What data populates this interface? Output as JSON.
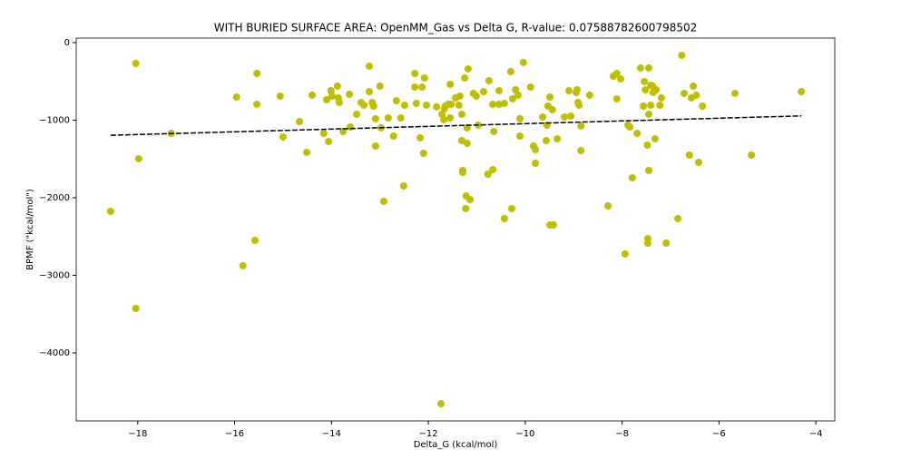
{
  "chart_data": {
    "type": "scatter",
    "title": "WITH BURIED SURFACE AREA: OpenMM_Gas vs Delta G, R-value: 0.07588782600798502",
    "x_label": "Delta_G (kcal/mol)",
    "y_label": "BPMF (\"kcal/mol\")",
    "color": "#bfbf00",
    "x": [
      -18.56,
      -18.04,
      -18.04,
      -17.98,
      -17.31,
      -15.96,
      -15.58,
      -15.54,
      -15.54,
      -15.83,
      -15.06,
      -15.0,
      -14.66,
      -14.51,
      -14.4,
      -14.16,
      -14.1,
      -14.06,
      -14.01,
      -13.99,
      -13.88,
      -13.86,
      -13.84,
      -13.76,
      -13.63,
      -13.61,
      -13.48,
      -13.39,
      -13.33,
      -13.22,
      -13.22,
      -13.16,
      -13.13,
      -13.09,
      -13.09,
      -13.0,
      -12.98,
      -12.92,
      -12.83,
      -12.72,
      -12.66,
      -12.57,
      -12.49,
      -12.51,
      -12.28,
      -12.28,
      -12.25,
      -12.17,
      -12.13,
      -12.1,
      -12.08,
      -12.04,
      -11.83,
      -11.74,
      -11.72,
      -11.68,
      -11.67,
      -11.65,
      -11.59,
      -11.55,
      -11.53,
      -11.55,
      -11.44,
      -11.37,
      -11.35,
      -11.31,
      -11.31,
      -11.29,
      -11.29,
      -11.25,
      -11.23,
      -11.22,
      -11.2,
      -11.2,
      -11.18,
      -11.14,
      -11.07,
      -11.01,
      -10.97,
      -10.86,
      -10.75,
      -10.77,
      -10.67,
      -10.67,
      -10.65,
      -10.54,
      -10.54,
      -10.43,
      -10.43,
      -10.3,
      -10.28,
      -10.26,
      -10.2,
      -10.15,
      -10.11,
      -10.11,
      -10.04,
      -9.89,
      -9.83,
      -9.79,
      -9.79,
      -9.64,
      -9.57,
      -9.55,
      -9.53,
      -9.49,
      -9.49,
      -9.42,
      -9.44,
      -9.34,
      -9.19,
      -9.1,
      -9.06,
      -8.95,
      -8.93,
      -8.91,
      -8.89,
      -8.85,
      -8.85,
      -8.67,
      -8.29,
      -8.18,
      -8.11,
      -8.11,
      -8.03,
      -7.94,
      -7.88,
      -7.84,
      -7.79,
      -7.69,
      -7.62,
      -7.56,
      -7.54,
      -7.52,
      -7.48,
      -7.47,
      -7.47,
      -7.45,
      -7.45,
      -7.45,
      -7.41,
      -7.41,
      -7.37,
      -7.36,
      -7.32,
      -7.3,
      -7.22,
      -7.19,
      -7.09,
      -6.85,
      -6.77,
      -6.72,
      -6.61,
      -6.57,
      -6.53,
      -6.47,
      -6.42,
      -6.34,
      -5.67,
      -5.33,
      -4.3
    ],
    "values": [
      -2175,
      -269,
      -3427,
      -1497,
      -1170,
      -702,
      -2550,
      -398,
      -795,
      -2877,
      -690,
      -1216,
      -1018,
      -1415,
      -678,
      -1170,
      -737,
      -1275,
      -620,
      -690,
      -561,
      -713,
      -772,
      -1146,
      -667,
      -1088,
      -924,
      -772,
      -807,
      -304,
      -632,
      -772,
      -819,
      -982,
      -1333,
      -561,
      -1099,
      -2047,
      -971,
      -1205,
      -749,
      -971,
      -807,
      -1848,
      -398,
      -573,
      -784,
      -1228,
      -573,
      -1427,
      -456,
      -807,
      -830,
      -4655,
      -924,
      -994,
      -854,
      -819,
      -795,
      -538,
      -795,
      -971,
      -713,
      -807,
      -690,
      -1263,
      -924,
      -1649,
      -1673,
      -456,
      -2140,
      -1977,
      -1099,
      -1298,
      -339,
      -2023,
      -655,
      -690,
      -1064,
      -632,
      -491,
      -1696,
      -1637,
      -795,
      -1146,
      -620,
      -795,
      -784,
      -2269,
      -374,
      -2140,
      -725,
      -608,
      -678,
      -982,
      -1205,
      -257,
      -573,
      -1333,
      -1380,
      -1556,
      -959,
      -1263,
      -1064,
      -819,
      -702,
      -2351,
      -2351,
      -865,
      -1240,
      -959,
      -620,
      -947,
      -643,
      -608,
      -772,
      -807,
      -1076,
      -1392,
      -678,
      -2105,
      -433,
      -398,
      -725,
      -468,
      -2725,
      -1064,
      -1088,
      -1743,
      -1170,
      -327,
      -819,
      -503,
      -608,
      -1322,
      -2526,
      -2585,
      -327,
      -924,
      -1649,
      -550,
      -807,
      -561,
      -643,
      -1240,
      -608,
      -807,
      -713,
      -2585,
      -2269,
      -164,
      -655,
      -1450,
      -713,
      -561,
      -678,
      -1544,
      -819,
      -655,
      -1450,
      -632
    ],
    "trend": {
      "x": [
        -18.56,
        -4.3
      ],
      "values": [
        -1195,
        -945
      ],
      "color": "#000000"
    },
    "xlim": [
      -19.27,
      -3.61
    ],
    "ylim": [
      -4877,
      58
    ],
    "xticks": [
      {
        "value": -18,
        "label": "−18"
      },
      {
        "value": -16,
        "label": "−16"
      },
      {
        "value": -14,
        "label": "−14"
      },
      {
        "value": -12,
        "label": "−12"
      },
      {
        "value": -10,
        "label": "−10"
      },
      {
        "value": -8,
        "label": "−8"
      },
      {
        "value": -6,
        "label": "−6"
      },
      {
        "value": -4,
        "label": "−4"
      }
    ],
    "yticks": [
      0,
      {
        "value": -1000,
        "label": "−1000"
      },
      {
        "value": -2000,
        "label": "−2000"
      },
      {
        "value": -3000,
        "label": "−3000"
      },
      {
        "value": -4000,
        "label": "−4000"
      }
    ]
  }
}
